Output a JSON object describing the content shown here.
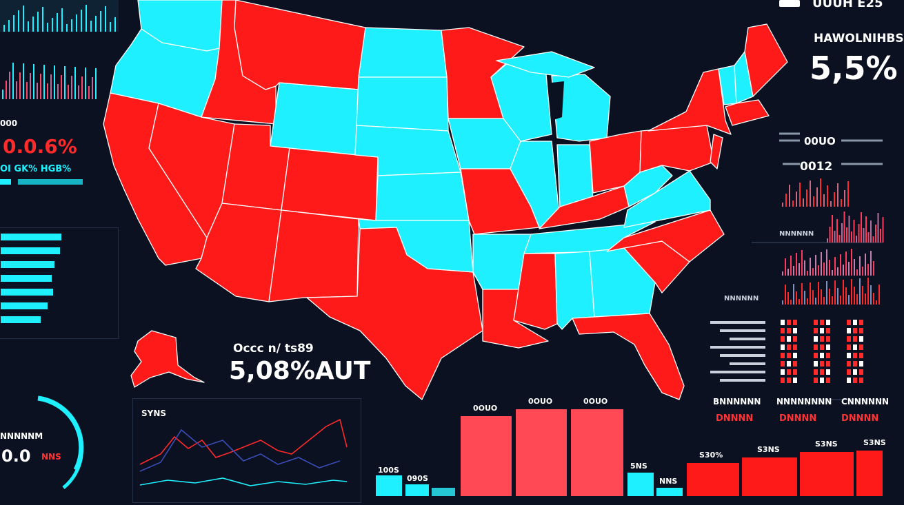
{
  "colors": {
    "background": "#0b1120",
    "red": "#ff1a1a",
    "cyan": "#1ff0ff",
    "panel_border": "#243049",
    "light_red": "#ff4a55"
  },
  "header": {
    "top_right_text": "UUUH E25"
  },
  "left_panel": {
    "small_label": "000",
    "big_percent": "0.0.6%",
    "sub_label": "OI GK% HGB%",
    "bottom_label": "NNNNNM",
    "bottom_value": "0.0",
    "bottom_badge": "NNS",
    "hbar_levels": [
      0.88,
      0.86,
      0.78,
      0.74,
      0.76,
      0.68,
      0.58
    ]
  },
  "center_stat": {
    "label": "Occc n/ ts89",
    "value": "5,08%AUT"
  },
  "top_right": {
    "label": "HAWOLNIHBS",
    "value": "5,5%"
  },
  "right_panel": {
    "row1_value": "00UO",
    "row2_value": "0012",
    "row3_label": "NNNNNN",
    "row5_label": "NNNNNN",
    "table_cols": [
      {
        "title": "BNNNNNN",
        "value": "DNNNN"
      },
      {
        "title": "NNNNNNNN",
        "value": "DNNNN"
      },
      {
        "title": "CNNNNNN",
        "value": "DNNNN"
      }
    ]
  },
  "line_chart": {
    "label": "SYNS"
  },
  "bottom_bars": {
    "small_labels": [
      "100S",
      "090S"
    ],
    "big_labels": [
      "0OUO",
      "0OUO",
      "0OUO"
    ],
    "mid_labels": [
      "5NS",
      "NNS"
    ],
    "right_labels": [
      "S30%",
      "S3NS",
      "S3NS",
      "S3NS"
    ]
  },
  "map": {
    "states": [
      {
        "id": "WA",
        "party": "blue"
      },
      {
        "id": "OR",
        "party": "blue"
      },
      {
        "id": "CA",
        "party": "red"
      },
      {
        "id": "ID",
        "party": "red"
      },
      {
        "id": "NV",
        "party": "red"
      },
      {
        "id": "MT",
        "party": "red"
      },
      {
        "id": "WY",
        "party": "blue"
      },
      {
        "id": "UT",
        "party": "red"
      },
      {
        "id": "AZ",
        "party": "red"
      },
      {
        "id": "CO",
        "party": "red"
      },
      {
        "id": "NM",
        "party": "red"
      },
      {
        "id": "ND",
        "party": "blue"
      },
      {
        "id": "SD",
        "party": "blue"
      },
      {
        "id": "NE",
        "party": "blue"
      },
      {
        "id": "KS",
        "party": "blue"
      },
      {
        "id": "OK",
        "party": "blue"
      },
      {
        "id": "TX",
        "party": "red"
      },
      {
        "id": "MN",
        "party": "red"
      },
      {
        "id": "IA",
        "party": "blue"
      },
      {
        "id": "MO",
        "party": "red"
      },
      {
        "id": "AR",
        "party": "blue"
      },
      {
        "id": "LA",
        "party": "red"
      },
      {
        "id": "WI",
        "party": "blue"
      },
      {
        "id": "IL",
        "party": "blue"
      },
      {
        "id": "MI",
        "party": "blue"
      },
      {
        "id": "IN",
        "party": "blue"
      },
      {
        "id": "OH",
        "party": "red"
      },
      {
        "id": "KY",
        "party": "red"
      },
      {
        "id": "TN",
        "party": "blue"
      },
      {
        "id": "MS",
        "party": "red"
      },
      {
        "id": "AL",
        "party": "blue"
      },
      {
        "id": "GA",
        "party": "blue"
      },
      {
        "id": "FL",
        "party": "red"
      },
      {
        "id": "SC",
        "party": "red"
      },
      {
        "id": "NC",
        "party": "red"
      },
      {
        "id": "VA",
        "party": "blue"
      },
      {
        "id": "WV",
        "party": "blue"
      },
      {
        "id": "PA",
        "party": "red"
      },
      {
        "id": "NY",
        "party": "red"
      },
      {
        "id": "VT",
        "party": "blue"
      },
      {
        "id": "NH",
        "party": "blue"
      },
      {
        "id": "ME",
        "party": "red"
      },
      {
        "id": "MA",
        "party": "red"
      },
      {
        "id": "NJ",
        "party": "red"
      },
      {
        "id": "AK",
        "party": "red"
      }
    ]
  }
}
